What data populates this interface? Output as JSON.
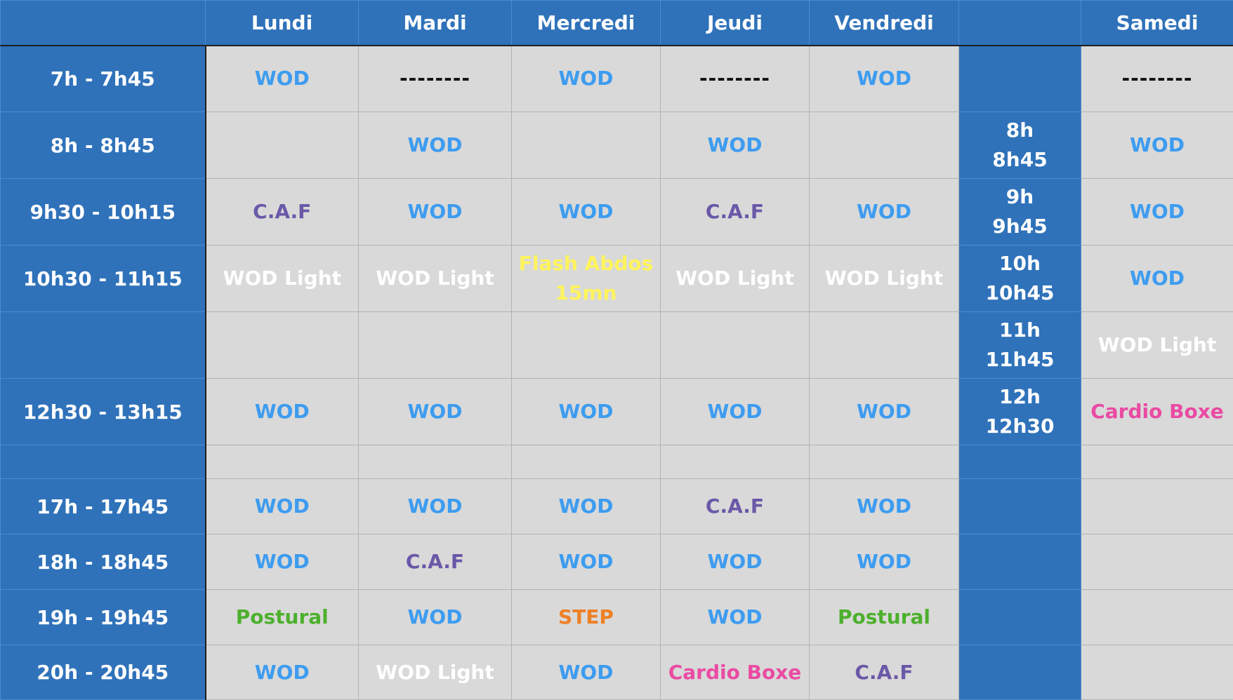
{
  "headers": {
    "corner": "",
    "lundi": "Lundi",
    "mardi": "Mardi",
    "mercredi": "Mercredi",
    "jeudi": "Jeudi",
    "vendredi": "Vendredi",
    "sat_time": "",
    "samedi": "Samedi"
  },
  "activity_colors": {
    "WOD": "#3d9cf0",
    "C.A.F": "#6a58a8",
    "WOD Light": "#ffffff",
    "Flash Abdos": "#fff45c",
    "Cardio Boxe": "#ea4aa3",
    "Postural": "#4cb02c",
    "STEP": "#ee8026"
  },
  "rows": [
    {
      "time": "7h - 7h45",
      "lundi": "WOD",
      "mardi": "--------",
      "mercredi": "WOD",
      "jeudi": "--------",
      "vendredi": "WOD",
      "sat_time_a": "",
      "sat_time_b": "",
      "samedi": "--------"
    },
    {
      "time": "8h - 8h45",
      "lundi": "",
      "mardi": "WOD",
      "mercredi": "",
      "jeudi": "WOD",
      "vendredi": "",
      "sat_time_a": "8h",
      "sat_time_b": "8h45",
      "samedi": "WOD"
    },
    {
      "time": "9h30 - 10h15",
      "lundi": "C.A.F",
      "mardi": "WOD",
      "mercredi": "WOD",
      "jeudi": "C.A.F",
      "vendredi": "WOD",
      "sat_time_a": "9h",
      "sat_time_b": "9h45",
      "samedi": "WOD"
    },
    {
      "time": "10h30 - 11h15",
      "lundi": "WOD Light",
      "mardi": "WOD Light",
      "mercredi_a": "Flash Abdos",
      "mercredi_b": "15mn",
      "jeudi": "WOD Light",
      "vendredi": "WOD Light",
      "sat_time_a": "10h",
      "sat_time_b": "10h45",
      "samedi": "WOD"
    },
    {
      "time": "",
      "lundi": "",
      "mardi": "",
      "mercredi": "",
      "jeudi": "",
      "vendredi": "",
      "sat_time_a": "11h",
      "sat_time_b": "11h45",
      "samedi": "WOD Light"
    },
    {
      "time": "12h30 - 13h15",
      "lundi": "WOD",
      "mardi": "WOD",
      "mercredi": "WOD",
      "jeudi": "WOD",
      "vendredi": "WOD",
      "sat_time_a": "12h",
      "sat_time_b": "12h30",
      "samedi": "Cardio Boxe"
    },
    {
      "time": "",
      "lundi": "",
      "mardi": "",
      "mercredi": "",
      "jeudi": "",
      "vendredi": "",
      "sat_time_a": "",
      "sat_time_b": "",
      "samedi": ""
    },
    {
      "time": "17h - 17h45",
      "lundi": "WOD",
      "mardi": "WOD",
      "mercredi": "WOD",
      "jeudi": "C.A.F",
      "vendredi": "WOD",
      "sat_time_a": "",
      "sat_time_b": "",
      "samedi": ""
    },
    {
      "time": "18h - 18h45",
      "lundi": "WOD",
      "mardi": "C.A.F",
      "mercredi": "WOD",
      "jeudi": "WOD",
      "vendredi": "WOD",
      "sat_time_a": "",
      "sat_time_b": "",
      "samedi": ""
    },
    {
      "time": "19h - 19h45",
      "lundi": "Postural",
      "mardi": "WOD",
      "mercredi": "STEP",
      "jeudi": "WOD",
      "vendredi": "Postural",
      "sat_time_a": "",
      "sat_time_b": "",
      "samedi": ""
    },
    {
      "time": "20h - 20h45",
      "lundi": "WOD",
      "mardi": "WOD Light",
      "mercredi": "WOD",
      "jeudi": "Cardio Boxe",
      "vendredi": "C.A.F",
      "sat_time_a": "",
      "sat_time_b": "",
      "samedi": ""
    }
  ]
}
